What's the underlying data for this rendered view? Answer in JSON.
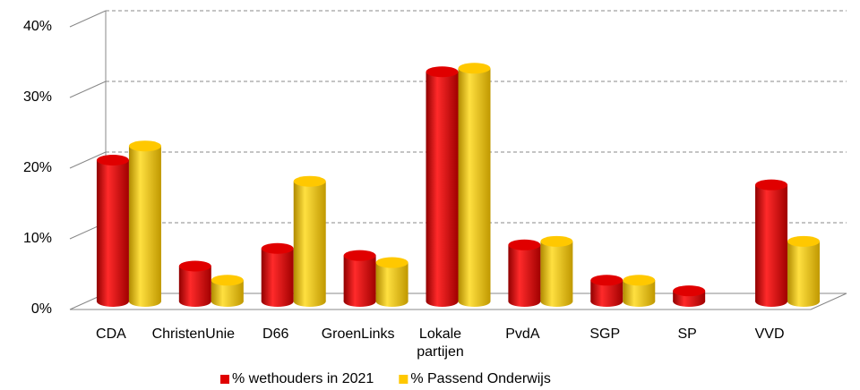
{
  "chart_data": {
    "type": "bar3d",
    "categories": [
      "CDA",
      "ChristenUnie",
      "D66",
      "GroenLinks",
      "Lokale partijen",
      "PvdA",
      "SGP",
      "SP",
      "VVD"
    ],
    "series": [
      {
        "name": "% wethouders in 2021",
        "color": "#e00000",
        "values": [
          20,
          5,
          7.5,
          6.5,
          32.5,
          8,
          3,
          1.5,
          16.5
        ]
      },
      {
        "name": "% Passend Onderwijs",
        "color": "#ffc800",
        "values": [
          22,
          3,
          17,
          5.5,
          33,
          8.5,
          3,
          null,
          8.5
        ]
      }
    ],
    "ylim": [
      0,
      40
    ],
    "yticks": [
      {
        "value": 0,
        "label": "0%"
      },
      {
        "value": 10,
        "label": "10%"
      },
      {
        "value": 20,
        "label": "20%"
      },
      {
        "value": 30,
        "label": "30%"
      },
      {
        "value": 40,
        "label": "40%"
      }
    ],
    "grid": true,
    "legend": "bottom"
  }
}
